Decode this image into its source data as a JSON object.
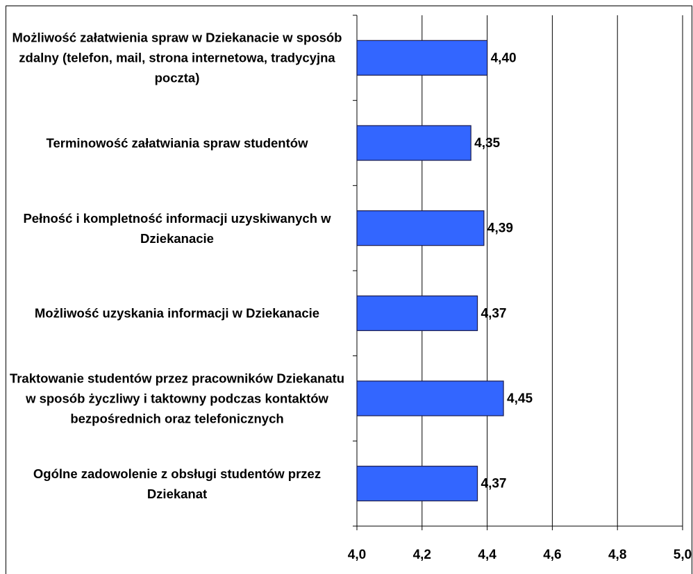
{
  "chart_data": {
    "type": "bar",
    "orientation": "horizontal",
    "categories": [
      "Możliwość załatwienia spraw w Dziekanacie w sposób zdalny (telefon, mail, strona internetowa, tradycyjna poczta)",
      "Terminowość załatwiania spraw studentów",
      "Pełność i kompletność informacji uzyskiwanych w Dziekanacie",
      "Możliwość uzyskania informacji w Dziekanacie",
      "Traktowanie studentów przez pracowników Dziekanatu w sposób życzliwy i taktowny podczas kontaktów bezpośrednich oraz telefonicznych",
      "Ogólne zadowolenie z obsługi studentów przez Dziekanat"
    ],
    "values": [
      4.4,
      4.35,
      4.39,
      4.37,
      4.45,
      4.37
    ],
    "value_labels": [
      "4,40",
      "4,35",
      "4,39",
      "4,37",
      "4,45",
      "4,37"
    ],
    "color": "#3366ff",
    "xlim": [
      4.0,
      5.0
    ],
    "xticks": [
      {
        "value": 4.0,
        "label": "4,0"
      },
      {
        "value": 4.2,
        "label": "4,2"
      },
      {
        "value": 4.4,
        "label": "4,4"
      },
      {
        "value": 4.6,
        "label": "4,6"
      },
      {
        "value": 4.8,
        "label": "4,8"
      },
      {
        "value": 5.0,
        "label": "5,0"
      }
    ],
    "grid": true
  }
}
